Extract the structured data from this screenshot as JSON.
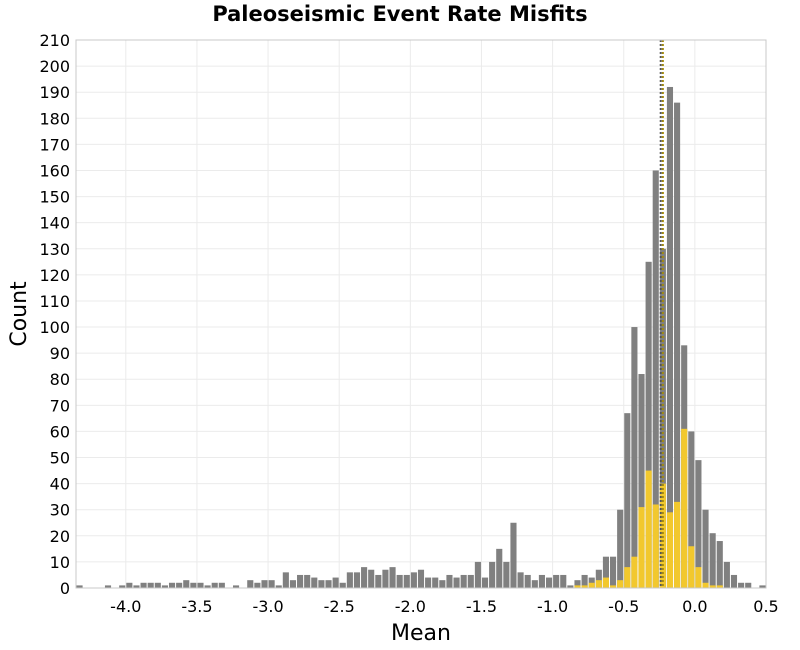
{
  "chart_data": {
    "type": "bar",
    "title": "Paleoseismic Event Rate Misfits",
    "xlabel": "Mean",
    "ylabel": "Count",
    "xlim": [
      -4.35,
      0.5
    ],
    "ylim": [
      0,
      210
    ],
    "bin_width": 0.05,
    "x_ticks": [
      "-4.0",
      "-3.5",
      "-3.0",
      "-2.5",
      "-2.0",
      "-1.5",
      "-1.0",
      "-0.5",
      "0.0",
      "0.5"
    ],
    "x_tick_values": [
      -4.0,
      -3.5,
      -3.0,
      -2.5,
      -2.0,
      -1.5,
      -1.0,
      -0.5,
      0.0,
      0.5
    ],
    "y_ticks": [
      0,
      10,
      20,
      30,
      40,
      50,
      60,
      70,
      80,
      90,
      100,
      110,
      120,
      130,
      140,
      150,
      160,
      170,
      180,
      190,
      200,
      210
    ],
    "grid": true,
    "series": [
      {
        "color": "#808080",
        "x": [
          -4.325,
          -4.125,
          -4.025,
          -3.975,
          -3.925,
          -3.875,
          -3.825,
          -3.775,
          -3.725,
          -3.675,
          -3.625,
          -3.575,
          -3.525,
          -3.475,
          -3.425,
          -3.375,
          -3.325,
          -3.225,
          -3.125,
          -3.075,
          -3.025,
          -2.975,
          -2.925,
          -2.875,
          -2.825,
          -2.775,
          -2.725,
          -2.675,
          -2.625,
          -2.575,
          -2.525,
          -2.475,
          -2.425,
          -2.375,
          -2.325,
          -2.275,
          -2.225,
          -2.175,
          -2.125,
          -2.075,
          -2.025,
          -1.975,
          -1.925,
          -1.875,
          -1.825,
          -1.775,
          -1.725,
          -1.675,
          -1.625,
          -1.575,
          -1.525,
          -1.475,
          -1.425,
          -1.375,
          -1.325,
          -1.275,
          -1.225,
          -1.175,
          -1.125,
          -1.075,
          -1.025,
          -0.975,
          -0.925,
          -0.875,
          -0.825,
          -0.775,
          -0.725,
          -0.675,
          -0.625,
          -0.575,
          -0.525,
          -0.475,
          -0.425,
          -0.375,
          -0.325,
          -0.275,
          -0.225,
          -0.175,
          -0.125,
          -0.075,
          -0.025,
          0.025,
          0.075,
          0.125,
          0.175,
          0.225,
          0.275,
          0.325,
          0.375,
          0.475
        ],
        "values": [
          1,
          1,
          1,
          2,
          1,
          2,
          2,
          2,
          1,
          2,
          2,
          3,
          2,
          2,
          1,
          2,
          2,
          1,
          3,
          2,
          3,
          3,
          1,
          6,
          3,
          5,
          5,
          4,
          3,
          3,
          4,
          2,
          6,
          6,
          8,
          7,
          5,
          7,
          8,
          5,
          5,
          6,
          7,
          4,
          4,
          3,
          5,
          4,
          5,
          5,
          10,
          4,
          10,
          15,
          10,
          25,
          6,
          5,
          3,
          5,
          4,
          5,
          5,
          1,
          3,
          5,
          4,
          7,
          12,
          12,
          30,
          67,
          100,
          82,
          125,
          160,
          130,
          192,
          186,
          93,
          60,
          49,
          30,
          21,
          18,
          10,
          5,
          2,
          2,
          1
        ]
      },
      {
        "color": "#f2c82e",
        "x": [
          -0.825,
          -0.775,
          -0.725,
          -0.675,
          -0.625,
          -0.575,
          -0.525,
          -0.475,
          -0.425,
          -0.375,
          -0.325,
          -0.275,
          -0.225,
          -0.175,
          -0.125,
          -0.075,
          -0.025,
          0.025,
          0.075,
          0.125,
          0.175
        ],
        "values": [
          1,
          1,
          2,
          3,
          4,
          1,
          3,
          8,
          12,
          31,
          45,
          32,
          40,
          29,
          33,
          61,
          16,
          8,
          2,
          1,
          1
        ]
      }
    ],
    "reference_lines": [
      {
        "x": -0.24,
        "color": "#555555",
        "style": "dotted"
      },
      {
        "x": -0.225,
        "color": "#a08a10",
        "style": "dotted"
      }
    ]
  }
}
